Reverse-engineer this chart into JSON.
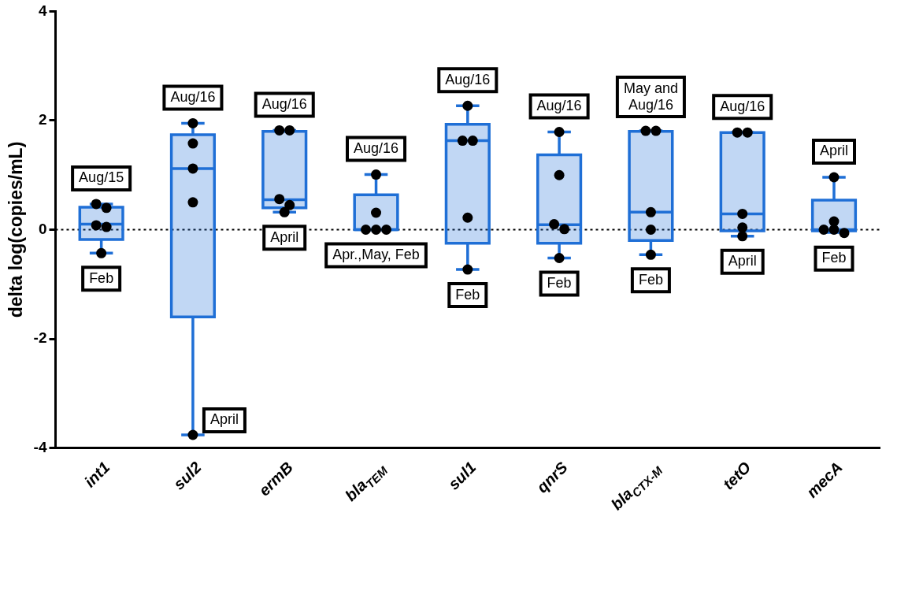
{
  "chart_data": {
    "type": "box",
    "ylabel": "delta log(copies/mL)",
    "categories": [
      "int1",
      "sul2",
      "ermB",
      "bla$_{TEM}$",
      "sul1",
      "qnrS",
      "bla$_{CTX-M}$",
      "tetO",
      "mecA"
    ],
    "ylim": [
      -4,
      4
    ],
    "yticks": [
      -4,
      -2,
      0,
      2,
      4
    ],
    "grid": false,
    "legend": false,
    "ref_lines": [
      {
        "axis": "y",
        "value": 0,
        "color": "#000000",
        "line_style": "dotted"
      }
    ],
    "series": [
      {
        "color": "#1f6fd6",
        "boxes": [
          {
            "low": -0.43,
            "q1": -0.18,
            "median": 0.1,
            "q3": 0.41,
            "high": 0.47
          },
          {
            "low": -3.76,
            "q1": -1.6,
            "median": 1.12,
            "q3": 1.74,
            "high": 1.95
          },
          {
            "low": 0.32,
            "q1": 0.4,
            "median": 0.55,
            "q3": 1.8,
            "high": 1.82
          },
          {
            "low": 0,
            "q1": 0,
            "median": 0,
            "q3": 0.64,
            "high": 1.01
          },
          {
            "low": -0.73,
            "q1": -0.25,
            "median": 1.63,
            "q3": 1.93,
            "high": 2.27
          },
          {
            "low": -0.52,
            "q1": -0.25,
            "median": 0.09,
            "q3": 1.37,
            "high": 1.79
          },
          {
            "low": -0.46,
            "q1": -0.2,
            "median": 0.32,
            "q3": 1.8,
            "high": 1.81
          },
          {
            "low": -0.12,
            "q1": -0.02,
            "median": 0.29,
            "q3": 1.78,
            "high": 1.78
          },
          {
            "low": -0.05,
            "q1": -0.02,
            "median": 0,
            "q3": 0.54,
            "high": 0.96
          }
        ]
      },
      {
        "type": "scatter",
        "color": "#000000",
        "marker": "circle",
        "x": [
          "int1",
          "int1",
          "int1",
          "int1",
          "int1",
          "sul2",
          "sul2",
          "sul2",
          "sul2",
          "sul2",
          "ermB",
          "ermB",
          "ermB",
          "ermB",
          "ermB",
          "bla$_{TEM}$",
          "bla$_{TEM}$",
          "bla$_{TEM}$",
          "bla$_{TEM}$",
          "bla$_{TEM}$",
          "sul1",
          "sul1",
          "sul1",
          "sul1",
          "sul1",
          "qnrS",
          "qnrS",
          "qnrS",
          "qnrS",
          "qnrS",
          "bla$_{CTX-M}$",
          "bla$_{CTX-M}$",
          "bla$_{CTX-M}$",
          "bla$_{CTX-M}$",
          "bla$_{CTX-M}$",
          "tetO",
          "tetO",
          "tetO",
          "tetO",
          "tetO",
          "mecA",
          "mecA",
          "mecA",
          "mecA",
          "mecA"
        ],
        "values": [
          0.47,
          0.4,
          0.08,
          0.05,
          -0.43,
          1.95,
          1.58,
          1.12,
          0.5,
          -3.76,
          1.82,
          1.82,
          0.56,
          0.45,
          0.32,
          1.01,
          0.31,
          0,
          0,
          0,
          2.27,
          1.63,
          1.63,
          0.22,
          -0.73,
          1.79,
          1.0,
          0.1,
          0.01,
          -0.52,
          1.81,
          1.81,
          0.32,
          0,
          -0.46,
          1.78,
          1.78,
          0.29,
          0.04,
          -0.12,
          0.96,
          0.15,
          0,
          0,
          -0.06
        ]
      }
    ],
    "annotations": [
      {
        "text": "Aug/15",
        "x": "int1",
        "y": 0.47
      },
      {
        "text": "Feb",
        "x": "int1",
        "y": -0.43
      },
      {
        "text": "Aug/16",
        "x": "sul2",
        "y": 1.95
      },
      {
        "text": "April",
        "x": "sul2",
        "y": -3.76
      },
      {
        "text": "Aug/16",
        "x": "ermB",
        "y": 1.82
      },
      {
        "text": "April",
        "x": "ermB",
        "y": 0.32
      },
      {
        "text": "Aug/16",
        "x": "bla$_{TEM}$",
        "y": 1.01
      },
      {
        "text": "Apr.,May, Feb",
        "x": "bla$_{TEM}$",
        "y": 0
      },
      {
        "text": "Aug/16",
        "x": "sul1",
        "y": 2.27
      },
      {
        "text": "Feb",
        "x": "sul1",
        "y": -0.73
      },
      {
        "text": "Aug/16",
        "x": "qnrS",
        "y": 1.79
      },
      {
        "text": "Feb",
        "x": "qnrS",
        "y": -0.52
      },
      {
        "text": "May and\nAug/16",
        "x": "bla$_{CTX-M}$",
        "y": 1.81
      },
      {
        "text": "Feb",
        "x": "bla$_{CTX-M}$",
        "y": -0.46
      },
      {
        "text": "Aug/16",
        "x": "tetO",
        "y": 1.78
      },
      {
        "text": "April",
        "x": "tetO",
        "y": -0.12
      },
      {
        "text": "April",
        "x": "mecA",
        "y": 0.96
      },
      {
        "text": "Feb",
        "x": "mecA",
        "y": -0.06
      }
    ]
  }
}
